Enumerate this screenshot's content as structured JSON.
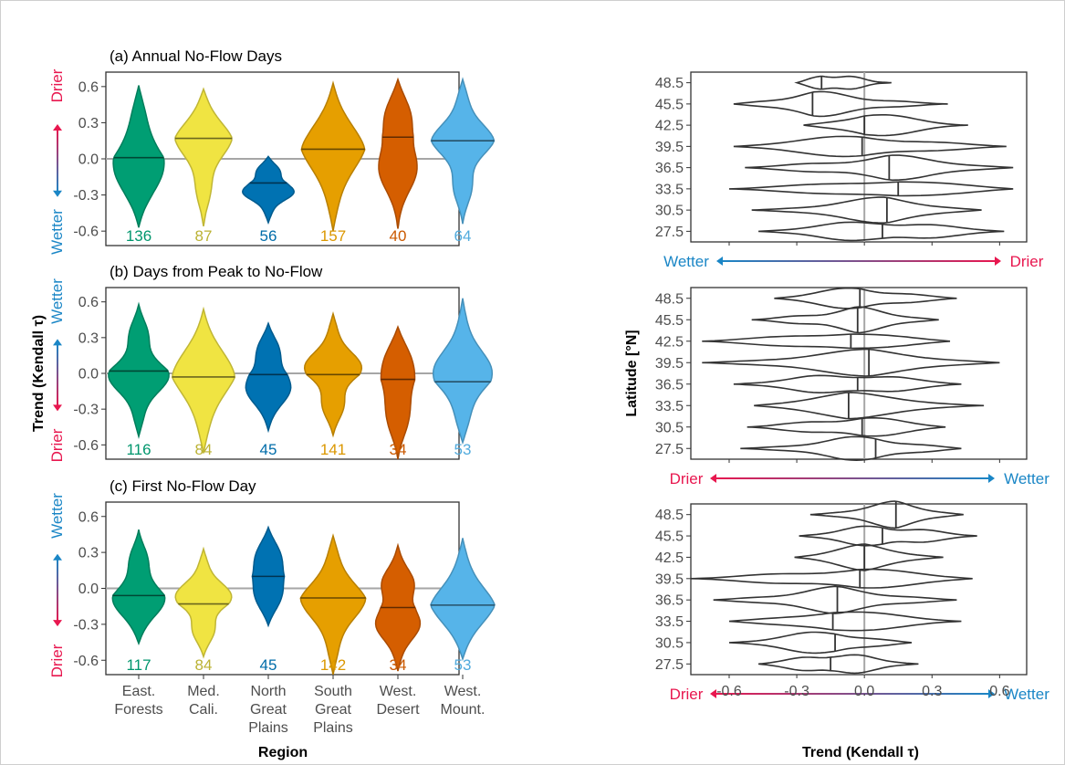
{
  "region_colors": [
    "#009E73",
    "#F0E442",
    "#0072B2",
    "#E69F00",
    "#D55E00",
    "#56B4E9"
  ],
  "direction_colors": {
    "drier": "#E8174F",
    "wetter": "#1A86C6"
  },
  "left_panels": {
    "ylabel": "Trend (Kendall τ)",
    "xlabel": "Region",
    "categories": [
      "East.\nForests",
      "Med.\nCali.",
      "North\nGreat\nPlains",
      "South\nGreat\nPlains",
      "West.\nDesert",
      "West.\nMount."
    ],
    "yticks": [
      "0.6",
      "0.3",
      "0.0",
      "-0.3",
      "-0.6"
    ]
  },
  "right_panels": {
    "ylabel": "Latitude [°N]",
    "xlabel": "Trend (Kendall τ)",
    "yticks": [
      "48.5",
      "45.5",
      "42.5",
      "39.5",
      "36.5",
      "33.5",
      "30.5",
      "27.5"
    ],
    "xticks": [
      "-0.6",
      "-0.3",
      "0.0",
      "0.3",
      "0.6"
    ]
  },
  "chart_data": [
    {
      "type": "violin",
      "title": "(a) Annual No-Flow Days",
      "categories": [
        "East. Forests",
        "Med. Cali.",
        "North Great Plains",
        "South Great Plains",
        "West. Desert",
        "West. Mount."
      ],
      "counts": [
        "136",
        "87",
        "56",
        "157",
        "40",
        "64"
      ],
      "medians": [
        0.01,
        0.17,
        -0.2,
        0.08,
        0.18,
        0.15
      ],
      "ranges": [
        [
          -0.57,
          0.61
        ],
        [
          -0.56,
          0.58
        ],
        [
          -0.53,
          0.02
        ],
        [
          -0.6,
          0.63
        ],
        [
          -0.58,
          0.66
        ],
        [
          -0.54,
          0.66
        ]
      ],
      "ylim": [
        -0.72,
        0.72
      ],
      "direction_top": "Drier",
      "direction_bottom": "Wetter"
    },
    {
      "type": "violin",
      "title": "(b) Days from Peak to No-Flow",
      "categories": [
        "East. Forests",
        "Med. Cali.",
        "North Great Plains",
        "South Great Plains",
        "West. Desert",
        "West. Mount."
      ],
      "counts": [
        "116",
        "84",
        "45",
        "141",
        "34",
        "53"
      ],
      "medians": [
        0.02,
        -0.03,
        -0.01,
        -0.01,
        -0.05,
        -0.07
      ],
      "ranges": [
        [
          -0.53,
          0.58
        ],
        [
          -0.67,
          0.54
        ],
        [
          -0.48,
          0.42
        ],
        [
          -0.52,
          0.5
        ],
        [
          -0.72,
          0.39
        ],
        [
          -0.58,
          0.63
        ]
      ],
      "ylim": [
        -0.72,
        0.72
      ],
      "direction_top": "Wetter",
      "direction_bottom": "Drier"
    },
    {
      "type": "violin",
      "title": "(c) First No-Flow Day",
      "categories": [
        "East. Forests",
        "Med. Cali.",
        "North Great Plains",
        "South Great Plains",
        "West. Desert",
        "West. Mount."
      ],
      "counts": [
        "117",
        "84",
        "45",
        "142",
        "34",
        "53"
      ],
      "medians": [
        -0.06,
        -0.13,
        0.1,
        -0.08,
        -0.16,
        -0.14
      ],
      "ranges": [
        [
          -0.46,
          0.49
        ],
        [
          -0.57,
          0.33
        ],
        [
          -0.31,
          0.51
        ],
        [
          -0.72,
          0.44
        ],
        [
          -0.69,
          0.36
        ],
        [
          -0.59,
          0.42
        ]
      ],
      "ylim": [
        -0.72,
        0.72
      ],
      "direction_top": "Wetter",
      "direction_bottom": "Drier"
    },
    {
      "type": "violin",
      "orientation": "horizontal",
      "latitudes": [
        48.5,
        45.5,
        42.5,
        39.5,
        36.5,
        33.5,
        30.5,
        27.5
      ],
      "medians": [
        -0.19,
        -0.23,
        0.0,
        -0.01,
        0.11,
        0.15,
        0.1,
        0.08
      ],
      "ranges": [
        [
          -0.3,
          0.12
        ],
        [
          -0.58,
          0.37
        ],
        [
          -0.27,
          0.46
        ],
        [
          -0.58,
          0.63
        ],
        [
          -0.53,
          0.66
        ],
        [
          -0.6,
          0.66
        ],
        [
          -0.5,
          0.52
        ],
        [
          -0.47,
          0.62
        ]
      ],
      "xlim": [
        -0.77,
        0.72
      ],
      "direction_left": "Wetter",
      "direction_right": "Drier"
    },
    {
      "type": "violin",
      "orientation": "horizontal",
      "latitudes": [
        48.5,
        45.5,
        42.5,
        39.5,
        36.5,
        33.5,
        30.5,
        27.5
      ],
      "medians": [
        -0.02,
        -0.03,
        -0.06,
        0.02,
        -0.03,
        -0.07,
        -0.01,
        0.05
      ],
      "ranges": [
        [
          -0.4,
          0.41
        ],
        [
          -0.5,
          0.33
        ],
        [
          -0.72,
          0.38
        ],
        [
          -0.72,
          0.6
        ],
        [
          -0.58,
          0.43
        ],
        [
          -0.49,
          0.53
        ],
        [
          -0.52,
          0.36
        ],
        [
          -0.55,
          0.43
        ]
      ],
      "xlim": [
        -0.77,
        0.72
      ],
      "direction_left": "Drier",
      "direction_right": "Wetter"
    },
    {
      "type": "violin",
      "orientation": "horizontal",
      "latitudes": [
        48.5,
        45.5,
        42.5,
        39.5,
        36.5,
        33.5,
        30.5,
        27.5
      ],
      "medians": [
        0.14,
        0.08,
        0.0,
        -0.02,
        -0.12,
        -0.14,
        -0.13,
        -0.15
      ],
      "ranges": [
        [
          -0.24,
          0.44
        ],
        [
          -0.29,
          0.5
        ],
        [
          -0.31,
          0.35
        ],
        [
          -0.77,
          0.48
        ],
        [
          -0.67,
          0.41
        ],
        [
          -0.6,
          0.43
        ],
        [
          -0.6,
          0.21
        ],
        [
          -0.47,
          0.24
        ]
      ],
      "xlim": [
        -0.77,
        0.72
      ],
      "direction_left": "Drier",
      "direction_right": "Wetter"
    }
  ]
}
